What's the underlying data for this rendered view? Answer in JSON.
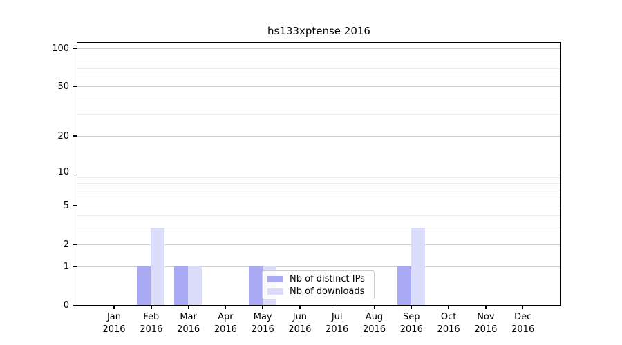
{
  "chart_data": {
    "type": "bar",
    "title": "hs133xptense 2016",
    "categories": [
      "Jan 2016",
      "Feb 2016",
      "Mar 2016",
      "Apr 2016",
      "May 2016",
      "Jun 2016",
      "Jul 2016",
      "Aug 2016",
      "Sep 2016",
      "Oct 2016",
      "Nov 2016",
      "Dec 2016"
    ],
    "series": [
      {
        "name": "Nb of distinct IPs",
        "color": "#a9a9f4",
        "values": [
          0,
          1,
          1,
          0,
          1,
          0,
          0,
          0,
          1,
          0,
          0,
          0
        ]
      },
      {
        "name": "Nb of downloads",
        "color": "#dbdcf9",
        "values": [
          0,
          3,
          1,
          0,
          1,
          0,
          0,
          0,
          3,
          0,
          0,
          0
        ]
      }
    ],
    "xlabel": "",
    "ylabel": "",
    "y_axis": {
      "scale": "log(1+x)",
      "major_ticks": [
        100,
        50,
        20,
        10,
        5,
        2,
        1,
        0
      ],
      "minor_gridlines": [
        3,
        4,
        6,
        7,
        8,
        9,
        30,
        40,
        60,
        70,
        80,
        90
      ],
      "ylim": [
        0,
        112
      ]
    },
    "legend": {
      "entries": [
        "Nb of distinct IPs",
        "Nb of downloads"
      ],
      "position": "lower center"
    },
    "grid": true,
    "colors": {
      "grid_major": "#cfcfcf",
      "grid_minor": "#ececec",
      "axis": "#000000",
      "background": "#ffffff"
    }
  }
}
